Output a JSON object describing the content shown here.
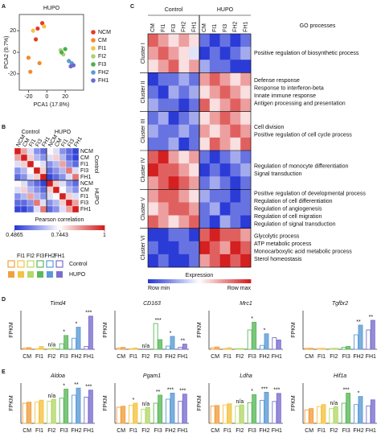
{
  "panel_labels": [
    "A",
    "B",
    "C",
    "D",
    "E"
  ],
  "legend_block": {
    "categories": [
      null,
      "FI1",
      "FI2",
      "FI3",
      "FH2",
      "FH1"
    ],
    "colors": [
      "#f0a040",
      "#f5c342",
      "#b5d86a",
      "#5cb85c",
      "#5b9bd5",
      "#7a6fcf"
    ],
    "series": [
      "Control",
      "HUPO"
    ]
  },
  "chart_data": [
    {
      "type": "scatter",
      "title": "HUPO",
      "xlabel": "PCA1 (17.8%)",
      "ylabel": "PCA2 (9.7%)",
      "xlim": [
        -30,
        40
      ],
      "ylim": [
        -35,
        35
      ],
      "xticks": [
        -20,
        0,
        20
      ],
      "yticks": [
        20,
        0,
        -20
      ],
      "series": [
        {
          "name": "NCM",
          "color": "#e8392a",
          "x": [
            -5,
            -10,
            -12
          ],
          "values": [
            27,
            22,
            12
          ]
        },
        {
          "name": "CM",
          "color": "#f28a2e",
          "x": [
            -20,
            -18,
            -8
          ],
          "values": [
            -5,
            -18,
            -10
          ]
        },
        {
          "name": "FI1",
          "color": "#f5c342",
          "x": [
            -15,
            -3
          ],
          "values": [
            20,
            24
          ]
        },
        {
          "name": "FI2",
          "color": "#a9d46f",
          "x": [
            15,
            18
          ],
          "values": [
            2,
            -2
          ]
        },
        {
          "name": "FI3",
          "color": "#4caf50",
          "x": [
            16,
            20
          ],
          "values": [
            0,
            3
          ]
        },
        {
          "name": "FH2",
          "color": "#5b9bd5",
          "x": [
            24,
            27
          ],
          "values": [
            -8,
            -10
          ]
        },
        {
          "name": "FH1",
          "color": "#6a6acf",
          "x": [
            26,
            29
          ],
          "values": [
            -13,
            -12
          ]
        }
      ]
    },
    {
      "type": "heatmap",
      "categories": [
        "NCM",
        "CM",
        "FI1",
        "FI3",
        "FH1",
        "NCM",
        "CM",
        "FI1",
        "FI3",
        "FH1"
      ],
      "groups": [
        "Control",
        "HUPO"
      ],
      "colorbar_label": "Pearson correlation",
      "clim": [
        0.4865,
        1
      ],
      "cticks": [
        0.4865,
        0.7443,
        1
      ],
      "values": [
        [
          1,
          0.85,
          0.7,
          0.6,
          0.55,
          0.75,
          0.7,
          0.6,
          0.55,
          0.5
        ],
        [
          0.85,
          1,
          0.8,
          0.65,
          0.6,
          0.7,
          0.8,
          0.65,
          0.55,
          0.5
        ],
        [
          0.7,
          0.8,
          1,
          0.75,
          0.7,
          0.6,
          0.65,
          0.85,
          0.6,
          0.55
        ],
        [
          0.6,
          0.65,
          0.75,
          1,
          0.8,
          0.55,
          0.6,
          0.65,
          0.9,
          0.7
        ],
        [
          0.55,
          0.6,
          0.7,
          0.8,
          1,
          0.5,
          0.55,
          0.6,
          0.7,
          0.9
        ],
        [
          0.75,
          0.7,
          0.6,
          0.55,
          0.5,
          1,
          0.8,
          0.7,
          0.6,
          0.55
        ],
        [
          0.7,
          0.8,
          0.65,
          0.6,
          0.55,
          0.8,
          1,
          0.75,
          0.65,
          0.6
        ],
        [
          0.6,
          0.65,
          0.85,
          0.65,
          0.6,
          0.7,
          0.75,
          1,
          0.8,
          0.7
        ],
        [
          0.55,
          0.55,
          0.6,
          0.9,
          0.7,
          0.6,
          0.65,
          0.8,
          1,
          0.85
        ],
        [
          0.5,
          0.5,
          0.55,
          0.7,
          0.9,
          0.55,
          0.6,
          0.7,
          0.85,
          1
        ]
      ]
    },
    {
      "type": "heatmap",
      "columns": [
        "CM",
        "FI1",
        "FI3",
        "FH2",
        "FH1",
        "CM",
        "FI1",
        "FI3",
        "FH2",
        "FH1"
      ],
      "groups": [
        "Control",
        "HUPO"
      ],
      "go_title": "GO processes",
      "colorbar_label": "Expression",
      "colorbar_min": "Row min",
      "colorbar_max": "Row max",
      "clusters": [
        {
          "name": "Cluster I",
          "rows": [
            [
              0.8,
              0.7,
              0.6,
              0.7,
              0.6,
              0.3,
              0.2,
              0.3,
              0.2,
              0.3
            ],
            [
              0.7,
              0.8,
              0.7,
              0.6,
              0.5,
              0.2,
              0.3,
              0.2,
              0.3,
              0.4
            ],
            [
              0.6,
              0.7,
              0.8,
              0.6,
              0.7,
              0.4,
              0.3,
              0.3,
              0.2,
              0.2
            ]
          ],
          "go": [
            "Positive regulation of biosynthetic process"
          ]
        },
        {
          "name": "Cluster II",
          "rows": [
            [
              0.2,
              0.3,
              0.3,
              0.4,
              0.3,
              0.7,
              0.8,
              0.7,
              0.6,
              0.7
            ],
            [
              0.3,
              0.2,
              0.4,
              0.3,
              0.4,
              0.6,
              0.7,
              0.8,
              0.7,
              0.6
            ],
            [
              0.4,
              0.3,
              0.3,
              0.2,
              0.3,
              0.8,
              0.6,
              0.7,
              0.8,
              0.7
            ]
          ],
          "go": [
            "Defense response",
            "Response to interferon-beta",
            "Innate immune response",
            "Antigen processing and presentation"
          ]
        },
        {
          "name": "Cluster III",
          "rows": [
            [
              0.3,
              0.4,
              0.2,
              0.3,
              0.4,
              0.6,
              0.7,
              0.8,
              0.7,
              0.6
            ],
            [
              0.4,
              0.3,
              0.3,
              0.4,
              0.3,
              0.7,
              0.6,
              0.7,
              0.8,
              0.7
            ],
            [
              0.3,
              0.3,
              0.4,
              0.2,
              0.3,
              0.6,
              0.8,
              0.7,
              0.6,
              0.8
            ]
          ],
          "go": [
            "Cell division",
            "Positive regulation of cell cycle process"
          ]
        },
        {
          "name": "Cluster IV",
          "rows": [
            [
              0.8,
              0.9,
              0.7,
              0.6,
              0.7,
              0.3,
              0.2,
              0.3,
              0.4,
              0.3
            ],
            [
              0.9,
              0.8,
              0.8,
              0.7,
              0.6,
              0.2,
              0.3,
              0.2,
              0.3,
              0.4
            ],
            [
              0.7,
              0.8,
              0.9,
              0.8,
              0.7,
              0.3,
              0.4,
              0.3,
              0.2,
              0.3
            ]
          ],
          "go": [
            "Regulation of monocyte differentiation",
            "Signal transduction"
          ]
        },
        {
          "name": "Cluster V",
          "rows": [
            [
              0.7,
              0.8,
              0.8,
              0.7,
              0.6,
              0.4,
              0.3,
              0.3,
              0.2,
              0.3
            ],
            [
              0.6,
              0.7,
              0.8,
              0.8,
              0.7,
              0.3,
              0.4,
              0.2,
              0.3,
              0.3
            ],
            [
              0.8,
              0.7,
              0.6,
              0.7,
              0.8,
              0.3,
              0.2,
              0.4,
              0.3,
              0.2
            ]
          ],
          "go": [
            "Positive regulation of developmental process",
            "Regulation of cell differentiation",
            "Regulation of angiogenesis",
            "Regulation of cell migration",
            "Regulation of signal transduction"
          ]
        },
        {
          "name": "Cluster VI",
          "rows": [
            [
              0.2,
              0.2,
              0.3,
              0.3,
              0.2,
              0.8,
              0.9,
              0.8,
              0.8,
              0.7
            ],
            [
              0.3,
              0.2,
              0.2,
              0.3,
              0.3,
              0.9,
              0.8,
              0.7,
              0.9,
              0.8
            ],
            [
              0.2,
              0.3,
              0.2,
              0.2,
              0.3,
              0.7,
              0.8,
              0.9,
              0.8,
              0.9
            ]
          ],
          "go": [
            "Glycolytic process",
            "ATP metabolic process",
            "Monocarboxylic acid metabolic process",
            "Sterol homeostasis"
          ]
        }
      ]
    },
    {
      "type": "bar",
      "title": "Timd4",
      "ylabel": "FPKM",
      "categories": [
        "CM",
        "FI1",
        "FI2",
        "FI3",
        "FH2",
        "FH1"
      ],
      "colors": [
        "#f0a040",
        "#f5c342",
        "#b5d86a",
        "#5cb85c",
        "#5b9bd5",
        "#7a6fcf"
      ],
      "ylim": [
        0,
        70
      ],
      "series": [
        {
          "values": [
            2,
            1,
            1,
            10,
            20,
            5
          ]
        },
        {
          "values": [
            3,
            5,
            2,
            25,
            40,
            60
          ]
        }
      ],
      "annotations": [
        null,
        null,
        "n/a",
        "*",
        "*",
        "***"
      ]
    },
    {
      "type": "bar",
      "title": "CD163",
      "ylabel": "FPKM",
      "categories": [
        "CM",
        "FI1",
        "FI2",
        "FI3",
        "FH2",
        "FH1"
      ],
      "colors": [
        "#f0a040",
        "#f5c342",
        "#b5d86a",
        "#5cb85c",
        "#5b9bd5",
        "#7a6fcf"
      ],
      "ylim": [
        0,
        60
      ],
      "series": [
        {
          "values": [
            2,
            1,
            0,
            40,
            5,
            3
          ]
        },
        {
          "values": [
            3,
            2,
            0,
            15,
            20,
            8
          ]
        }
      ],
      "annotations": [
        null,
        null,
        "n/a",
        "***",
        "*",
        "**"
      ]
    },
    {
      "type": "bar",
      "title": "Mrc1",
      "ylabel": "FPKM",
      "categories": [
        "CM",
        "FI1",
        "FI2",
        "FI3",
        "FH2",
        "FH1"
      ],
      "colors": [
        "#f0a040",
        "#f5c342",
        "#b5d86a",
        "#5cb85c",
        "#5b9bd5",
        "#7a6fcf"
      ],
      "ylim": [
        0,
        50
      ],
      "series": [
        {
          "values": [
            2,
            1,
            1,
            25,
            5,
            15
          ]
        },
        {
          "values": [
            3,
            2,
            1,
            35,
            20,
            12
          ]
        }
      ],
      "annotations": [
        null,
        null,
        null,
        "*",
        "*",
        null
      ]
    },
    {
      "type": "bar",
      "title": "Tgfbr2",
      "ylabel": "FPKM",
      "categories": [
        "CM",
        "FI1",
        "FI2",
        "FI3",
        "FH2",
        "FH1"
      ],
      "colors": [
        "#f0a040",
        "#f5c342",
        "#b5d86a",
        "#5cb85c",
        "#5b9bd5",
        "#7a6fcf"
      ],
      "ylim": [
        0,
        40
      ],
      "series": [
        {
          "values": [
            1,
            1,
            1,
            2,
            15,
            20
          ]
        },
        {
          "values": [
            1,
            1,
            1,
            3,
            25,
            30
          ]
        }
      ],
      "annotations": [
        null,
        null,
        null,
        null,
        "**",
        "**"
      ]
    },
    {
      "type": "bar",
      "title": "Aldoa",
      "ylabel": "FPKM",
      "categories": [
        "CM",
        "FI1",
        "FI2",
        "FI3",
        "FH2",
        "FH1"
      ],
      "colors": [
        "#f0a040",
        "#f5c342",
        "#b5d86a",
        "#5cb85c",
        "#5b9bd5",
        "#7a6fcf"
      ],
      "ylim": [
        0,
        4000
      ],
      "series": [
        {
          "values": [
            2000,
            2100,
            2200,
            2500,
            2800,
            2600
          ]
        },
        {
          "values": [
            2100,
            2300,
            2400,
            3400,
            3500,
            3300
          ]
        }
      ],
      "annotations": [
        null,
        null,
        "n/a",
        "*",
        "**",
        "***"
      ]
    },
    {
      "type": "bar",
      "title": "Pgam1",
      "ylabel": "FPKM",
      "categories": [
        "CM",
        "FI1",
        "FI2",
        "FI3",
        "FH2",
        "FH1"
      ],
      "colors": [
        "#f0a040",
        "#f5c342",
        "#b5d86a",
        "#5cb85c",
        "#5b9bd5",
        "#7a6fcf"
      ],
      "ylim": [
        0,
        2000
      ],
      "series": [
        {
          "values": [
            800,
            900,
            700,
            1000,
            1200,
            1100
          ]
        },
        {
          "values": [
            850,
            1000,
            800,
            1400,
            1500,
            1450
          ]
        }
      ],
      "annotations": [
        null,
        "*",
        "n/a",
        "**",
        "***",
        "***"
      ]
    },
    {
      "type": "bar",
      "title": "Ldha",
      "ylabel": "FPKM",
      "categories": [
        "CM",
        "FI1",
        "FI2",
        "FI3",
        "FH2",
        "FH1"
      ],
      "colors": [
        "#f0a040",
        "#f5c342",
        "#b5d86a",
        "#5cb85c",
        "#5b9bd5",
        "#7a6fcf"
      ],
      "ylim": [
        0,
        3500
      ],
      "series": [
        {
          "values": [
            1500,
            1600,
            1500,
            1800,
            2000,
            1900
          ]
        },
        {
          "values": [
            1550,
            1700,
            1600,
            2500,
            2700,
            2600
          ]
        }
      ],
      "annotations": [
        null,
        null,
        "n/a",
        "*",
        "***",
        "***"
      ]
    },
    {
      "type": "bar",
      "title": "Hif1a",
      "ylabel": "FPKM",
      "categories": [
        "CM",
        "FI1",
        "FI2",
        "FI3",
        "FH2",
        "FH1"
      ],
      "colors": [
        "#f0a040",
        "#f5c342",
        "#b5d86a",
        "#5cb85c",
        "#5b9bd5",
        "#7a6fcf"
      ],
      "ylim": [
        0,
        60
      ],
      "series": [
        {
          "values": [
            20,
            25,
            22,
            30,
            28,
            26
          ]
        },
        {
          "values": [
            22,
            28,
            25,
            45,
            40,
            35
          ]
        }
      ],
      "annotations": [
        null,
        null,
        "n/a",
        "***",
        "*",
        null
      ]
    }
  ]
}
